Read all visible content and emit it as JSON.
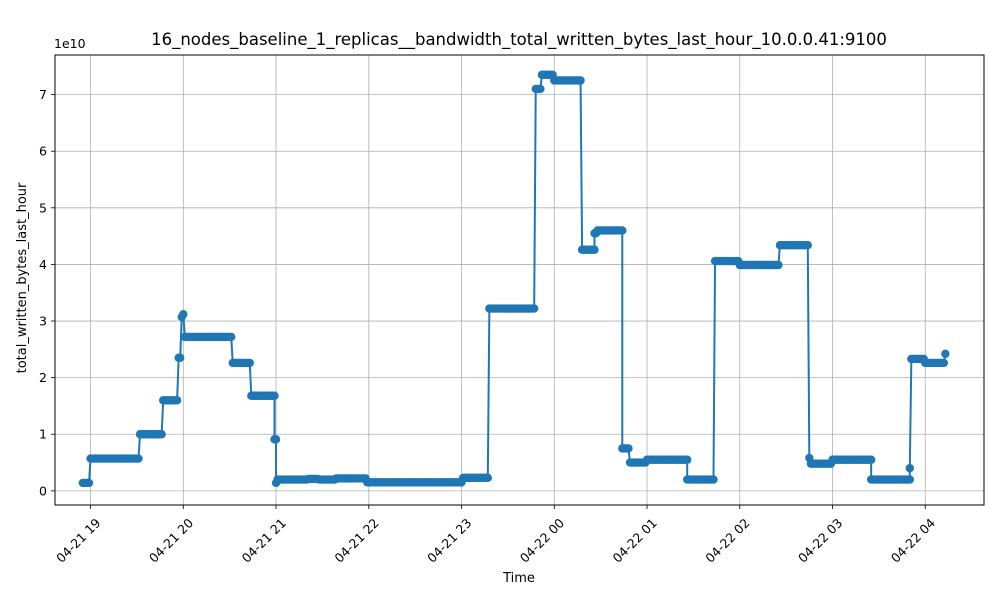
{
  "chart_data": {
    "type": "line",
    "title": "16_nodes_baseline_1_replicas__bandwidth_total_written_bytes_last_hour_10.0.0.41:9100",
    "xlabel": "Time",
    "ylabel": "total_written_bytes_last_hour",
    "y_offset_label": "1e10",
    "y_units": "1e10 bytes",
    "ylim": [
      -0.25,
      7.7
    ],
    "xlim": [
      "04-21 18:37",
      "04-22 04:38"
    ],
    "grid": true,
    "legend": "none",
    "colors": {
      "line": "#1f77b4",
      "marker": "#1f77b4",
      "grid": "#b0b0b0"
    },
    "x_ticks": [
      {
        "t": "04-21 19:00",
        "label": "04-21 19"
      },
      {
        "t": "04-21 20:00",
        "label": "04-21 20"
      },
      {
        "t": "04-21 21:00",
        "label": "04-21 21"
      },
      {
        "t": "04-21 22:00",
        "label": "04-21 22"
      },
      {
        "t": "04-21 23:00",
        "label": "04-21 23"
      },
      {
        "t": "04-22 00:00",
        "label": "04-22 00"
      },
      {
        "t": "04-22 01:00",
        "label": "04-22 01"
      },
      {
        "t": "04-22 02:00",
        "label": "04-22 02"
      },
      {
        "t": "04-22 03:00",
        "label": "04-22 03"
      },
      {
        "t": "04-22 04:00",
        "label": "04-22 04"
      }
    ],
    "y_ticks": [
      {
        "v": 0,
        "label": "0"
      },
      {
        "v": 1,
        "label": "1"
      },
      {
        "v": 2,
        "label": "2"
      },
      {
        "v": 3,
        "label": "3"
      },
      {
        "v": 4,
        "label": "4"
      },
      {
        "v": 5,
        "label": "5"
      },
      {
        "v": 6,
        "label": "6"
      },
      {
        "v": 7,
        "label": "7"
      }
    ],
    "segments": [
      {
        "start": "04-21 18:55",
        "end": "04-21 18:59",
        "y": 0.14
      },
      {
        "start": "04-21 19:00",
        "end": "04-21 19:31",
        "y": 0.57
      },
      {
        "start": "04-21 19:32",
        "end": "04-21 19:46",
        "y": 1.0
      },
      {
        "start": "04-21 19:47",
        "end": "04-21 19:56",
        "y": 1.6
      },
      {
        "start": "04-21 19:57",
        "end": "04-21 19:58",
        "y": 2.35
      },
      {
        "start": "04-21 19:59",
        "end": "04-21 19:59",
        "y": 3.07
      },
      {
        "start": "04-21 20:00",
        "end": "04-21 20:00",
        "y": 3.12
      },
      {
        "start": "04-21 20:01",
        "end": "04-21 20:31",
        "y": 2.72
      },
      {
        "start": "04-21 20:32",
        "end": "04-21 20:43",
        "y": 2.26
      },
      {
        "start": "04-21 20:44",
        "end": "04-21 20:59",
        "y": 1.68
      },
      {
        "start": "04-21 20:59",
        "end": "04-21 21:00",
        "y": 0.91
      },
      {
        "start": "04-21 21:00",
        "end": "04-21 21:00",
        "y": 0.14
      },
      {
        "start": "04-21 21:01",
        "end": "04-21 21:20",
        "y": 0.2
      },
      {
        "start": "04-21 21:21",
        "end": "04-21 21:27",
        "y": 0.21
      },
      {
        "start": "04-21 21:28",
        "end": "04-21 21:38",
        "y": 0.2
      },
      {
        "start": "04-21 21:39",
        "end": "04-21 21:58",
        "y": 0.22
      },
      {
        "start": "04-21 21:59",
        "end": "04-21 23:00",
        "y": 0.15
      },
      {
        "start": "04-21 23:01",
        "end": "04-21 23:17",
        "y": 0.23
      },
      {
        "start": "04-21 23:18",
        "end": "04-21 23:47",
        "y": 3.22
      },
      {
        "start": "04-21 23:48",
        "end": "04-21 23:51",
        "y": 7.1
      },
      {
        "start": "04-21 23:52",
        "end": "04-21 23:59",
        "y": 7.35
      },
      {
        "start": "04-22 00:00",
        "end": "04-22 00:17",
        "y": 7.25
      },
      {
        "start": "04-22 00:18",
        "end": "04-22 00:26",
        "y": 4.26
      },
      {
        "start": "04-22 00:26",
        "end": "04-22 00:27",
        "y": 4.55
      },
      {
        "start": "04-22 00:28",
        "end": "04-22 00:44",
        "y": 4.6
      },
      {
        "start": "04-22 00:44",
        "end": "04-22 00:48",
        "y": 0.75
      },
      {
        "start": "04-22 00:49",
        "end": "04-22 00:59",
        "y": 0.5
      },
      {
        "start": "04-22 01:00",
        "end": "04-22 01:26",
        "y": 0.55
      },
      {
        "start": "04-22 01:26",
        "end": "04-22 01:43",
        "y": 0.2
      },
      {
        "start": "04-22 01:44",
        "end": "04-22 01:59",
        "y": 4.06
      },
      {
        "start": "04-22 02:00",
        "end": "04-22 02:25",
        "y": 3.99
      },
      {
        "start": "04-22 02:26",
        "end": "04-22 02:44",
        "y": 4.34
      },
      {
        "start": "04-22 02:45",
        "end": "04-22 02:45",
        "y": 0.58
      },
      {
        "start": "04-22 02:46",
        "end": "04-22 02:59",
        "y": 0.48
      },
      {
        "start": "04-22 03:00",
        "end": "04-22 03:25",
        "y": 0.55
      },
      {
        "start": "04-22 03:25",
        "end": "04-22 03:50",
        "y": 0.2
      },
      {
        "start": "04-22 03:50",
        "end": "04-22 03:50",
        "y": 0.4
      },
      {
        "start": "04-22 03:51",
        "end": "04-22 03:59",
        "y": 2.33
      },
      {
        "start": "04-22 04:00",
        "end": "04-22 04:12",
        "y": 2.26
      },
      {
        "start": "04-22 04:13",
        "end": "04-22 04:13",
        "y": 2.42
      }
    ]
  }
}
